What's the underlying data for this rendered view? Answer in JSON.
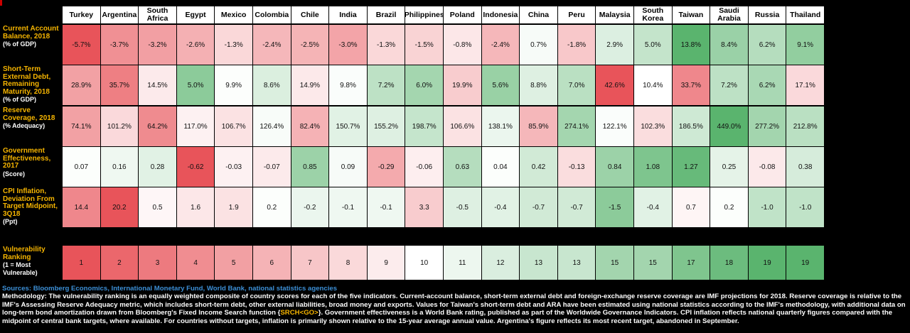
{
  "countries": [
    "Turkey",
    "Argentina",
    "South Africa",
    "Egypt",
    "Mexico",
    "Colombia",
    "Chile",
    "India",
    "Brazil",
    "Philippines",
    "Poland",
    "Indonesia",
    "China",
    "Peru",
    "Malaysia",
    "South Korea",
    "Taiwan",
    "Saudi Arabia",
    "Russia",
    "Thailand"
  ],
  "rows": [
    {
      "label": "Current Account Balance, 2018",
      "unit": "(% of GDP)",
      "values": [
        "-5.7%",
        "-3.7%",
        "-3.2%",
        "-2.6%",
        "-1.3%",
        "-2.4%",
        "-2.5%",
        "-3.0%",
        "-1.3%",
        "-1.5%",
        "-0.8%",
        "-2.4%",
        "0.7%",
        "-1.8%",
        "2.9%",
        "5.0%",
        "13.8%",
        "8.4%",
        "6.2%",
        "9.1%"
      ],
      "scores": [
        -1.0,
        -0.65,
        -0.56,
        -0.46,
        -0.23,
        -0.42,
        -0.44,
        -0.53,
        -0.23,
        -0.26,
        -0.14,
        -0.42,
        0.05,
        -0.32,
        0.21,
        0.36,
        1.0,
        0.61,
        0.45,
        0.66
      ]
    },
    {
      "label": "Short-Term External Debt, Remaining Maturity, 2018",
      "unit": "(% of GDP)",
      "values": [
        "28.9%",
        "35.7%",
        "14.5%",
        "5.0%",
        "9.9%",
        "8.6%",
        "14.9%",
        "9.8%",
        "7.2%",
        "6.0%",
        "19.9%",
        "5.6%",
        "8.8%",
        "7.0%",
        "42.6%",
        "10.4%",
        "33.7%",
        "7.2%",
        "6.2%",
        "17.1%"
      ],
      "scores": [
        -0.55,
        -0.75,
        -0.12,
        0.7,
        0.02,
        0.22,
        -0.13,
        0.03,
        0.4,
        0.55,
        -0.3,
        0.62,
        0.2,
        0.42,
        -1.0,
        0.0,
        -0.7,
        0.4,
        0.52,
        -0.22
      ]
    },
    {
      "label": "Reserve Coverage, 2018",
      "unit": "(% Adequacy)",
      "values": [
        "74.1%",
        "101.2%",
        "64.2%",
        "117.0%",
        "106.7%",
        "126.4%",
        "82.4%",
        "150.7%",
        "155.2%",
        "198.7%",
        "106.6%",
        "138.1%",
        "85.9%",
        "274.1%",
        "122.1%",
        "102.3%",
        "186.5%",
        "449.0%",
        "277.2%",
        "212.8%"
      ],
      "scores": [
        -0.55,
        -0.22,
        -0.68,
        -0.08,
        -0.17,
        0.04,
        -0.45,
        0.18,
        0.2,
        0.35,
        -0.17,
        0.12,
        -0.42,
        0.55,
        0.03,
        -0.2,
        0.3,
        1.0,
        0.56,
        0.42
      ]
    },
    {
      "label": "Government Effectiveness, 2017",
      "unit": "(Score)",
      "values": [
        "0.07",
        "0.16",
        "0.28",
        "-0.62",
        "-0.03",
        "-0.07",
        "0.85",
        "0.09",
        "-0.29",
        "-0.06",
        "0.63",
        "0.04",
        "0.42",
        "-0.13",
        "0.84",
        "1.08",
        "1.27",
        "0.25",
        "-0.08",
        "0.38"
      ],
      "scores": [
        0.02,
        0.1,
        0.18,
        -1.0,
        -0.08,
        -0.12,
        0.6,
        0.05,
        -0.5,
        -0.1,
        0.45,
        0.02,
        0.28,
        -0.2,
        0.6,
        0.78,
        0.92,
        0.16,
        -0.13,
        0.25
      ]
    },
    {
      "label": "CPI Inflation, Deviation From Target Midpoint, 3Q18",
      "unit": "(Ppt)",
      "values": [
        "14.4",
        "20.2",
        "0.5",
        "1.6",
        "1.9",
        "0.2",
        "-0.2",
        "-0.1",
        "-0.1",
        "3.3",
        "-0.5",
        "-0.4",
        "-0.7",
        "-0.7",
        "-1.5",
        "-0.4",
        "0.7",
        "0.2",
        "-1.0",
        "-1.0"
      ],
      "scores": [
        -0.7,
        -1.0,
        -0.05,
        -0.14,
        -0.17,
        0.02,
        0.12,
        0.1,
        0.1,
        -0.3,
        0.2,
        0.18,
        0.28,
        0.28,
        0.7,
        0.18,
        -0.06,
        0.02,
        0.38,
        0.38
      ]
    }
  ],
  "ranking": {
    "label": "Vulnerability Ranking",
    "unit": "(1 = Most Vulnerable)",
    "values": [
      "1",
      "2",
      "3",
      "4",
      "5",
      "6",
      "7",
      "8",
      "9",
      "10",
      "11",
      "12",
      "13",
      "13",
      "15",
      "15",
      "17",
      "18",
      "19",
      "19"
    ]
  },
  "colors": {
    "red": "#e8545a",
    "green": "#5ab46e",
    "neutral": "#ffffff"
  },
  "footer": {
    "sources": "Sources: Bloomberg Economics, International Monetary Fund, World Bank, national statistics agencies",
    "methodology_before": "Methodology: The vulnerability ranking is an equally weighted composite of country scores for each of the five indicators. Current-account balance, short-term external debt and foreign-exchange reserve coverage are IMF projections for 2018. Reserve coverage is relative to the IMF's Assessing Reserve Adequacy metric, which includes short-term debt, other external liabilities, broad money and exports. Values for Taiwan's short-term debt and ARA have been estimated using national statistics according to the IMF's methodology, with additional data on long-term bond amortization drawn from Bloomberg's Fixed Income Search function {",
    "methodology_highlight": "SRCH<GO>",
    "methodology_after": "}. Government effectiveness is a World Bank rating, published as part of the Worldwide Governance Indicators. CPI inflation reflects national quarterly figures compared with the midpoint of central bank targets, where available. For countries without targets, inflation is primarily shown relative to the 15-year average annual value. Argentina's figure reflects its most recent target, abandoned in September."
  },
  "chart_data": {
    "type": "table",
    "columns": [
      "Turkey",
      "Argentina",
      "South Africa",
      "Egypt",
      "Mexico",
      "Colombia",
      "Chile",
      "India",
      "Brazil",
      "Philippines",
      "Poland",
      "Indonesia",
      "China",
      "Peru",
      "Malaysia",
      "South Korea",
      "Taiwan",
      "Saudi Arabia",
      "Russia",
      "Thailand"
    ],
    "rows": [
      {
        "name": "Current Account Balance, 2018 (% of GDP)",
        "values": [
          -5.7,
          -3.7,
          -3.2,
          -2.6,
          -1.3,
          -2.4,
          -2.5,
          -3.0,
          -1.3,
          -1.5,
          -0.8,
          -2.4,
          0.7,
          -1.8,
          2.9,
          5.0,
          13.8,
          8.4,
          6.2,
          9.1
        ]
      },
      {
        "name": "Short-Term External Debt, Remaining Maturity, 2018 (% of GDP)",
        "values": [
          28.9,
          35.7,
          14.5,
          5.0,
          9.9,
          8.6,
          14.9,
          9.8,
          7.2,
          6.0,
          19.9,
          5.6,
          8.8,
          7.0,
          42.6,
          10.4,
          33.7,
          7.2,
          6.2,
          17.1
        ]
      },
      {
        "name": "Reserve Coverage, 2018 (% Adequacy)",
        "values": [
          74.1,
          101.2,
          64.2,
          117.0,
          106.7,
          126.4,
          82.4,
          150.7,
          155.2,
          198.7,
          106.6,
          138.1,
          85.9,
          274.1,
          122.1,
          102.3,
          186.5,
          449.0,
          277.2,
          212.8
        ]
      },
      {
        "name": "Government Effectiveness, 2017 (Score)",
        "values": [
          0.07,
          0.16,
          0.28,
          -0.62,
          -0.03,
          -0.07,
          0.85,
          0.09,
          -0.29,
          -0.06,
          0.63,
          0.04,
          0.42,
          -0.13,
          0.84,
          1.08,
          1.27,
          0.25,
          -0.08,
          0.38
        ]
      },
      {
        "name": "CPI Inflation, Deviation From Target Midpoint, 3Q18 (Ppt)",
        "values": [
          14.4,
          20.2,
          0.5,
          1.6,
          1.9,
          0.2,
          -0.2,
          -0.1,
          -0.1,
          3.3,
          -0.5,
          -0.4,
          -0.7,
          -0.7,
          -1.5,
          -0.4,
          0.7,
          0.2,
          -1.0,
          -1.0
        ]
      },
      {
        "name": "Vulnerability Ranking (1 = Most Vulnerable)",
        "values": [
          1,
          2,
          3,
          4,
          5,
          6,
          7,
          8,
          9,
          10,
          11,
          12,
          13,
          13,
          15,
          15,
          17,
          18,
          19,
          19
        ]
      }
    ]
  }
}
